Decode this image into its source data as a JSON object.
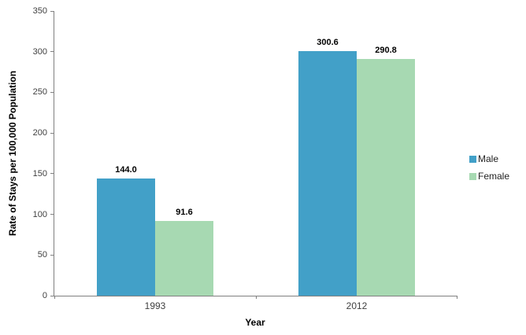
{
  "chart_data": {
    "type": "bar",
    "title": "",
    "categories": [
      "1993",
      "2012"
    ],
    "series": [
      {
        "name": "Male",
        "color": "#42A0C8",
        "values": [
          144.0,
          300.6
        ],
        "labels": [
          "144.0",
          "300.6"
        ]
      },
      {
        "name": "Female",
        "color": "#A7D9B2",
        "values": [
          91.6,
          290.8
        ],
        "labels": [
          "91.6",
          "290.8"
        ]
      }
    ],
    "xlabel": "Year",
    "ylabel": "Rate of Stays per 100,000 Population",
    "ylim": [
      0,
      350
    ],
    "yticks": [
      0,
      50,
      100,
      150,
      200,
      250,
      300,
      350
    ],
    "grid": false,
    "legend_position": "right",
    "axis_color": "#808080"
  }
}
